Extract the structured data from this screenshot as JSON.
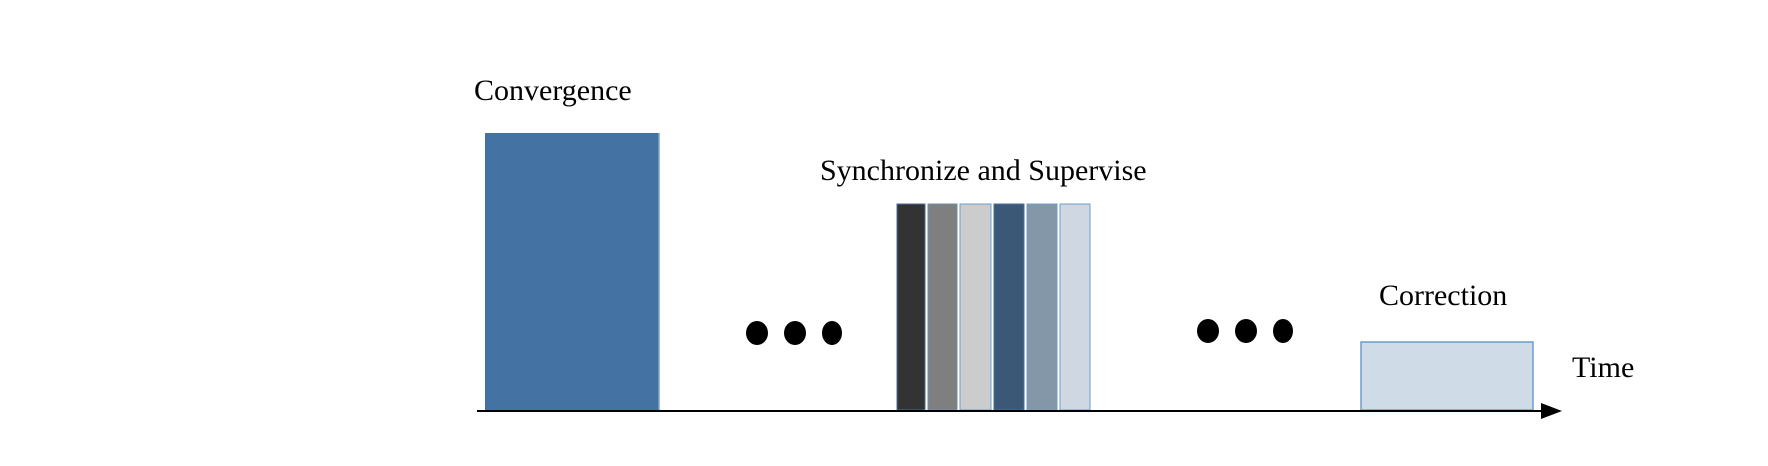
{
  "labels": {
    "convergence": "Convergence",
    "synchronize": "Synchronize and Supervise",
    "correction": "Correction",
    "time": "Time"
  },
  "colors": {
    "convergence_block": "#4472a2",
    "sync_bars": [
      "#333333",
      "#7f7f7f",
      "#cccccc",
      "#3b5876",
      "#8497a9",
      "#cfd8e2"
    ],
    "correction_block": "#cfdbe7",
    "correction_border": "#6f9cc9",
    "ellipsis_dots": "#000000",
    "axis": "#000000"
  }
}
